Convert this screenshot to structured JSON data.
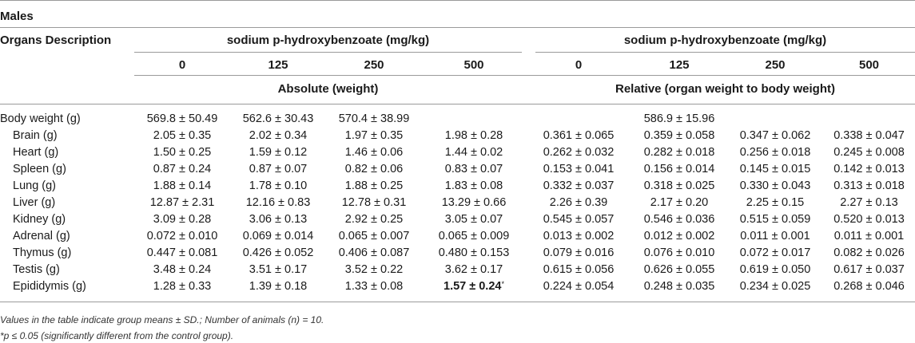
{
  "title": "Males",
  "header": {
    "organs_label": "Organs Description",
    "group_left": "sodium p-hydroxybenzoate (mg/kg)",
    "group_right": "sodium p-hydroxybenzoate (mg/kg)",
    "doses_left": [
      "0",
      "125",
      "250",
      "500"
    ],
    "doses_right": [
      "0",
      "125",
      "250",
      "500"
    ],
    "sub_left": "Absolute (weight)",
    "sub_right": "Relative (organ weight to body weight)"
  },
  "rows": [
    {
      "label": "Body weight (g)",
      "indent": false,
      "values": [
        "569.8 ± 50.49",
        "562.6 ± 30.43",
        "570.4 ± 38.99",
        "",
        "",
        "586.9 ± 15.96",
        "",
        ""
      ]
    },
    {
      "label": "Brain (g)",
      "indent": true,
      "values": [
        "2.05 ± 0.35",
        "2.02 ± 0.34",
        "1.97 ± 0.35",
        "1.98 ± 0.28",
        "0.361 ± 0.065",
        "0.359 ± 0.058",
        "0.347 ± 0.062",
        "0.338 ± 0.047"
      ]
    },
    {
      "label": "Heart (g)",
      "indent": true,
      "values": [
        "1.50 ± 0.25",
        "1.59 ± 0.12",
        "1.46 ± 0.06",
        "1.44 ± 0.02",
        "0.262 ± 0.032",
        "0.282 ± 0.018",
        "0.256 ± 0.018",
        "0.245 ± 0.008"
      ]
    },
    {
      "label": "Spleen (g)",
      "indent": true,
      "values": [
        "0.87 ± 0.24",
        "0.87 ± 0.07",
        "0.82 ± 0.06",
        "0.83 ± 0.07",
        "0.153 ± 0.041",
        "0.156 ± 0.014",
        "0.145 ± 0.015",
        "0.142 ± 0.013"
      ]
    },
    {
      "label": "Lung (g)",
      "indent": true,
      "values": [
        "1.88 ± 0.14",
        "1.78 ± 0.10",
        "1.88 ± 0.25",
        "1.83 ± 0.08",
        "0.332 ± 0.037",
        "0.318 ± 0.025",
        "0.330 ± 0.043",
        "0.313 ± 0.018"
      ]
    },
    {
      "label": "Liver (g)",
      "indent": true,
      "values": [
        "12.87 ± 2.31",
        "12.16 ± 0.83",
        "12.78 ± 0.31",
        "13.29 ± 0.66",
        "2.26 ± 0.39",
        "2.17 ± 0.20",
        "2.25 ± 0.15",
        "2.27 ± 0.13"
      ]
    },
    {
      "label": "Kidney (g)",
      "indent": true,
      "values": [
        "3.09 ± 0.28",
        "3.06 ± 0.13",
        "2.92 ± 0.25",
        "3.05 ± 0.07",
        "0.545 ± 0.057",
        "0.546 ± 0.036",
        "0.515 ± 0.059",
        "0.520 ± 0.013"
      ]
    },
    {
      "label": "Adrenal (g)",
      "indent": true,
      "values": [
        "0.072 ± 0.010",
        "0.069 ± 0.014",
        "0.065 ± 0.007",
        "0.065 ± 0.009",
        "0.013 ± 0.002",
        "0.012 ± 0.002",
        "0.011 ± 0.001",
        "0.011 ± 0.001"
      ]
    },
    {
      "label": "Thymus (g)",
      "indent": true,
      "values": [
        "0.447 ± 0.081",
        "0.426 ± 0.052",
        "0.406 ± 0.087",
        "0.480 ± 0.153",
        "0.079 ± 0.016",
        "0.076 ± 0.010",
        "0.072 ± 0.017",
        "0.082 ± 0.026"
      ]
    },
    {
      "label": "Testis (g)",
      "indent": true,
      "values": [
        "3.48 ± 0.24",
        "3.51 ± 0.17",
        "3.52 ± 0.22",
        "3.62 ± 0.17",
        "0.615 ± 0.056",
        "0.626 ± 0.055",
        "0.619 ± 0.050",
        "0.617 ± 0.037"
      ]
    },
    {
      "label": "Epididymis (g)",
      "indent": true,
      "values": [
        "1.28 ± 0.33",
        "1.39 ± 0.18",
        "1.33 ± 0.08",
        "1.57 ± 0.24",
        "0.224 ± 0.054",
        "0.248 ± 0.035",
        "0.234 ± 0.025",
        "0.268 ± 0.046"
      ],
      "bold_index": 3,
      "sup": "*"
    }
  ],
  "footnotes": [
    "Values in the table indicate group means ± SD.; Number of animals (n) = 10.",
    "*p ≤ 0.05 (significantly different from the control group)."
  ]
}
